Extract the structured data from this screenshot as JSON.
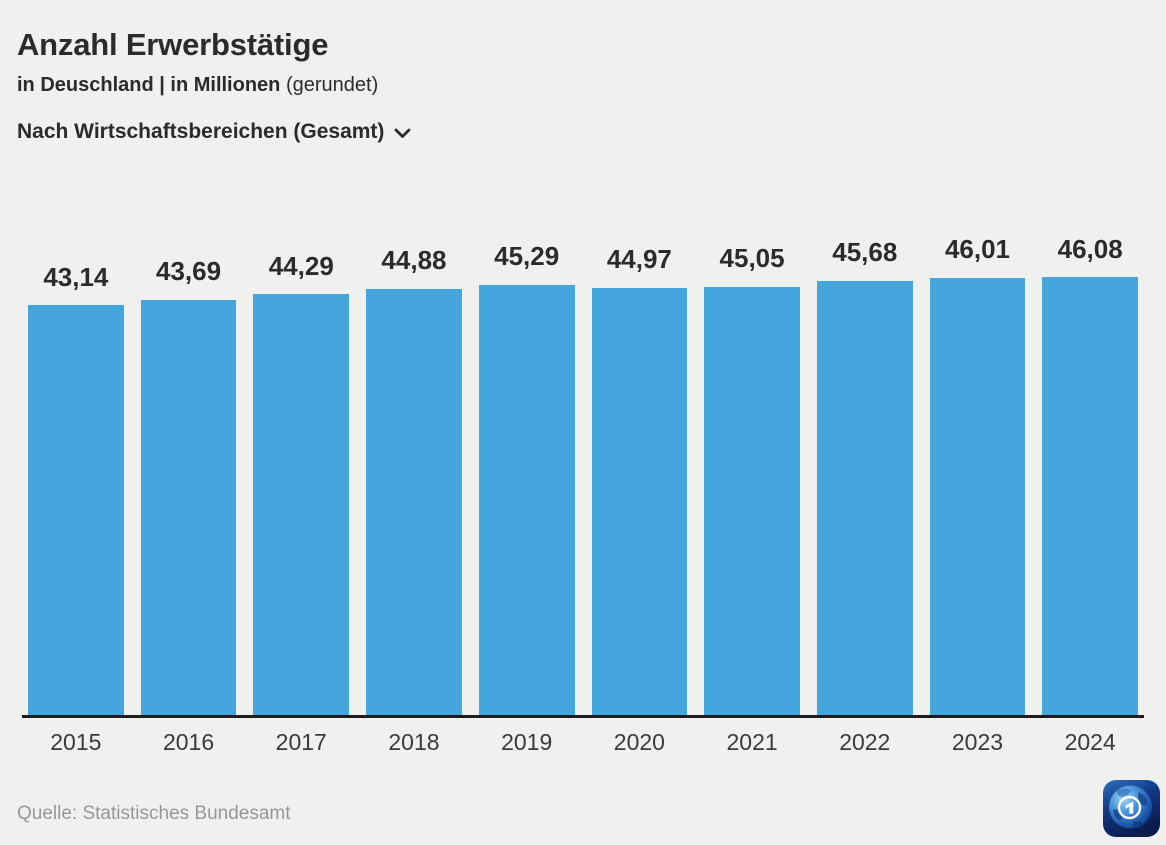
{
  "header": {
    "title": "Anzahl Erwerbstätige",
    "subtitle_strong": "in Deuschland | in Millionen",
    "subtitle_light": "(gerundet)",
    "filter_label": "Nach Wirtschaftsbereichen (Gesamt)",
    "filter_icon": "chevron-down-icon"
  },
  "chart_data": {
    "type": "bar",
    "title": "Anzahl Erwerbstätige",
    "subtitle": "in Deuschland | in Millionen (gerundet)",
    "categories": [
      "2015",
      "2016",
      "2017",
      "2018",
      "2019",
      "2020",
      "2021",
      "2022",
      "2023",
      "2024"
    ],
    "values": [
      43.14,
      43.69,
      44.29,
      44.88,
      45.29,
      44.97,
      45.05,
      45.68,
      46.01,
      46.08
    ],
    "value_labels": [
      "43,14",
      "43,69",
      "44,29",
      "44,88",
      "45,29",
      "44,97",
      "45,05",
      "45,68",
      "46,01",
      "46,08"
    ],
    "xlabel": "",
    "ylabel": "",
    "ylim": [
      0,
      46.08
    ],
    "grid": false,
    "legend": false,
    "y_axis_visible": false,
    "bar_color": "#45a5dd",
    "axis_color": "#1d1d1b"
  },
  "footer": {
    "source": "Quelle: Statistisches Bundesamt",
    "logo": "tagesschau-ard-globe-logo"
  },
  "colors": {
    "background": "#f0f0ee",
    "bar": "#45a5dd",
    "text": "#2b2b29",
    "source_text": "#979797",
    "logo_navy": "#0a1c4e",
    "logo_blue": "#2e6fc0"
  }
}
